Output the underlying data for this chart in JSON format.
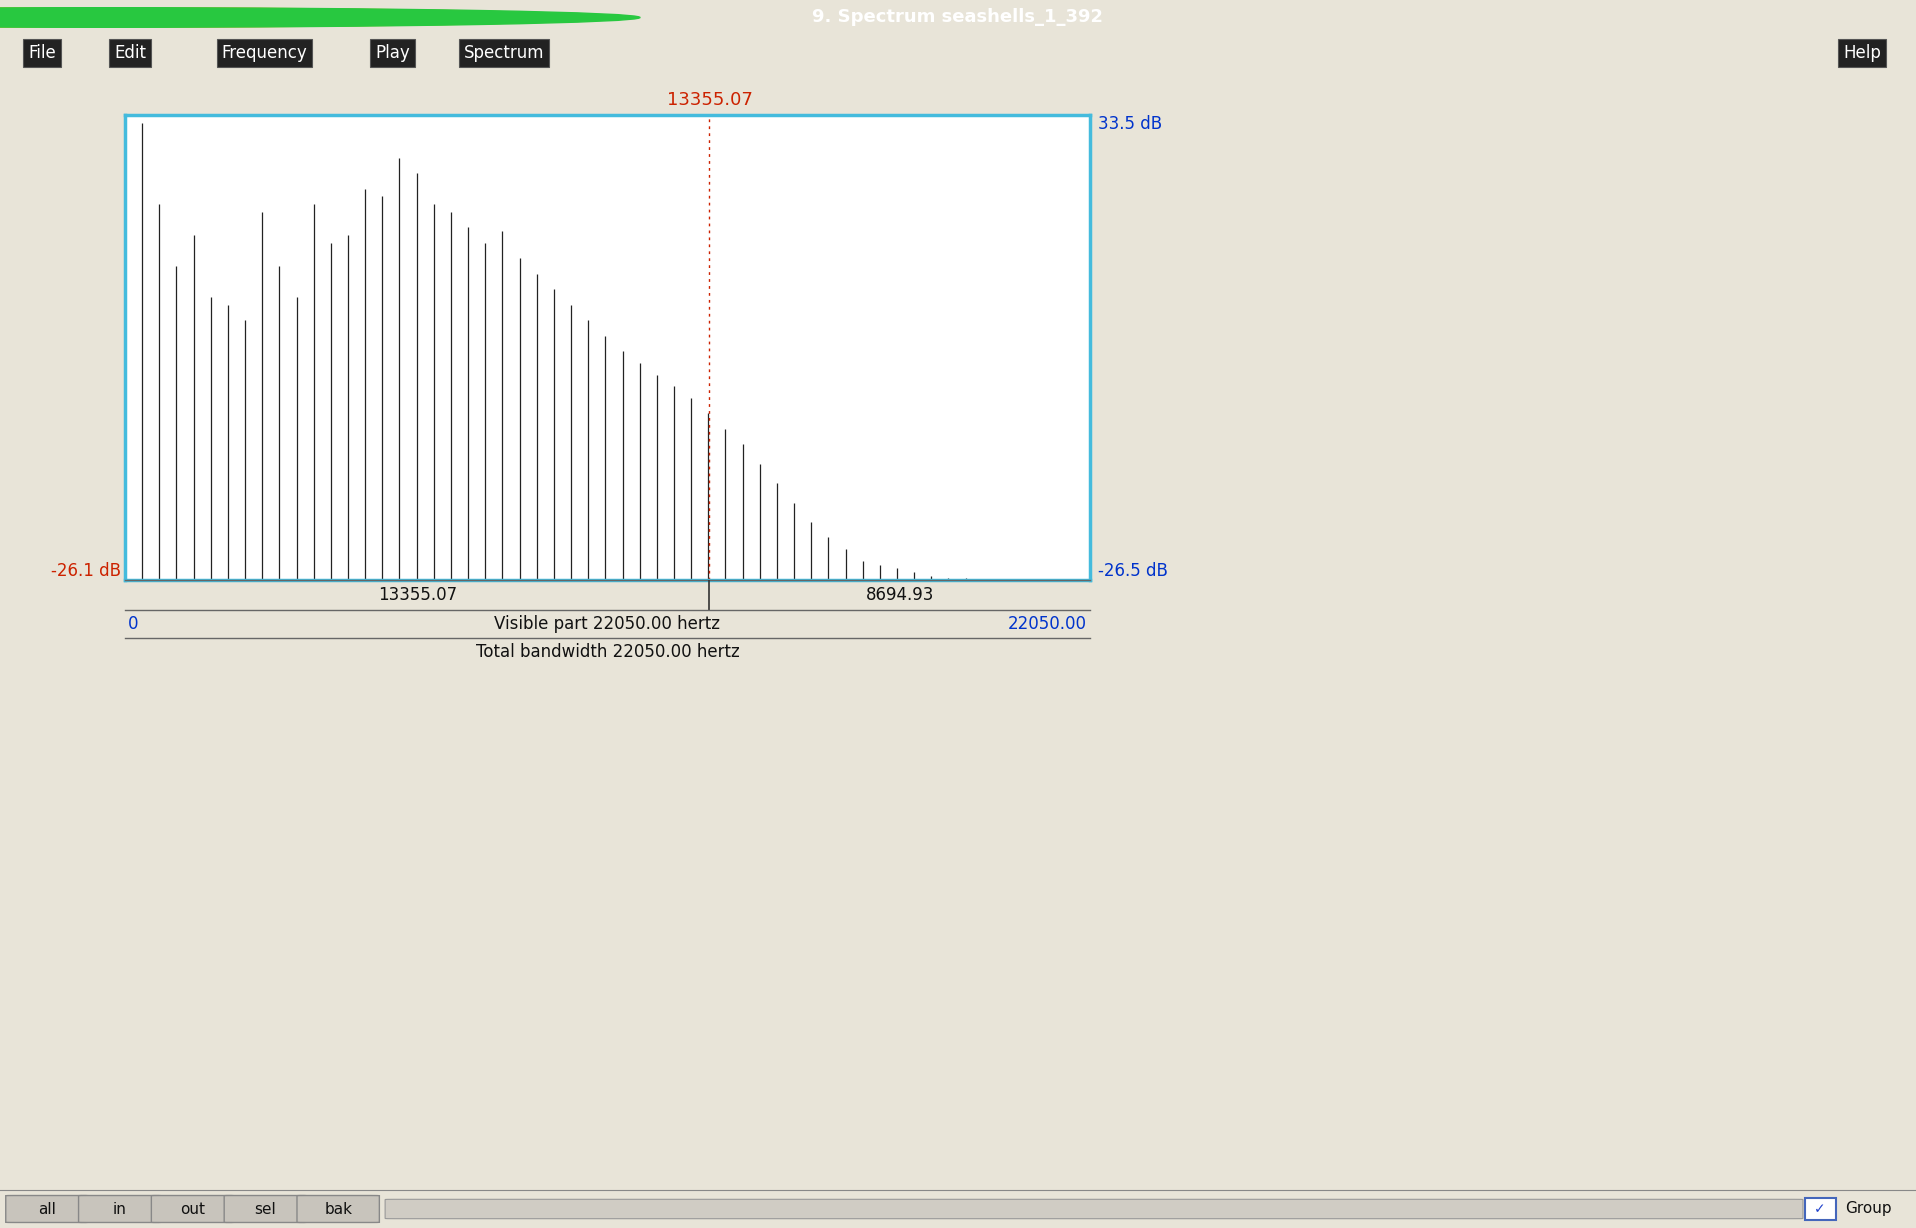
{
  "title": "9. Spectrum seashells_1_392",
  "menu_items": [
    "File",
    "Edit",
    "Frequency",
    "Play",
    "Spectrum"
  ],
  "help_text": "Help",
  "F0": 392.0,
  "x_min": 0,
  "x_max": 22050,
  "y_min": -26.5,
  "y_max": 33.5,
  "y_min_left": -26.1,
  "cursor_freq": 13355.07,
  "status_left": "13355.07",
  "status_right": "8694.93",
  "visible_label": "Visible part 22050.00 hertz",
  "bandwidth_label": "Total bandwidth 22050.00 hertz",
  "x_left_label": "0",
  "x_right_label": "22050.00",
  "outer_bg": "#e8e4d8",
  "plot_bg": "#ffffff",
  "title_bar_bg": "#2a2a2a",
  "menu_bar_bg": "#222222",
  "status_bar_bg": "#a8a090",
  "border_color": "#44bbdd",
  "cursor_color": "#cc2200",
  "right_label_color": "#0033cc",
  "left_label_color": "#cc2200",
  "harmonics_db": [
    32.5,
    22.0,
    14.0,
    18.0,
    10.0,
    9.0,
    7.0,
    21.0,
    14.0,
    10.0,
    22.0,
    17.0,
    18.0,
    24.0,
    23.0,
    28.0,
    26.0,
    22.0,
    21.0,
    19.0,
    17.0,
    18.5,
    15.0,
    13.0,
    11.0,
    9.0,
    7.0,
    5.0,
    3.0,
    1.5,
    0.0,
    -1.5,
    -3.0,
    -5.0,
    -7.0,
    -9.0,
    -11.5,
    -14.0,
    -16.5,
    -19.0,
    -21.0,
    -22.5,
    -24.0,
    -24.5,
    -25.0,
    -25.5,
    -26.0,
    -26.2,
    -26.3,
    -26.4,
    -26.4,
    -26.4,
    -26.4,
    -26.4,
    -26.4,
    -26.4
  ]
}
